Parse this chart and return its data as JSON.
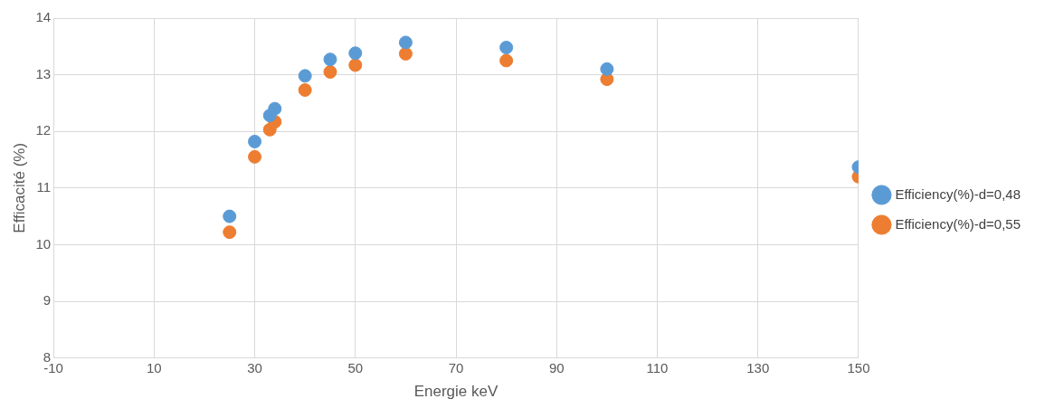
{
  "chart_data": {
    "type": "scatter",
    "xlabel": "Energie keV",
    "ylabel": "Efficacité (%)",
    "xlim": [
      -10,
      150
    ],
    "xticks": [
      -10,
      10,
      30,
      50,
      70,
      90,
      110,
      130,
      150
    ],
    "ylim": [
      8,
      14
    ],
    "yticks": [
      8,
      9,
      10,
      11,
      12,
      13,
      14
    ],
    "grid": true,
    "legend": "right",
    "marker": "circle",
    "series": [
      {
        "name": "Efficiency(%)-d=0,48",
        "color": "#5b9bd5",
        "x": [
          25,
          30,
          33,
          34,
          40,
          45,
          50,
          60,
          80,
          100,
          150
        ],
        "values": [
          10.5,
          11.82,
          12.28,
          12.4,
          12.98,
          13.27,
          13.38,
          13.57,
          13.48,
          13.1,
          11.37
        ]
      },
      {
        "name": "Efficiency(%)-d=0,55",
        "color": "#ed7d31",
        "x": [
          25,
          30,
          33,
          34,
          40,
          45,
          50,
          60,
          80,
          100,
          150
        ],
        "values": [
          10.22,
          11.55,
          12.03,
          12.17,
          12.73,
          13.05,
          13.17,
          13.37,
          13.25,
          12.92,
          11.2
        ]
      }
    ]
  }
}
